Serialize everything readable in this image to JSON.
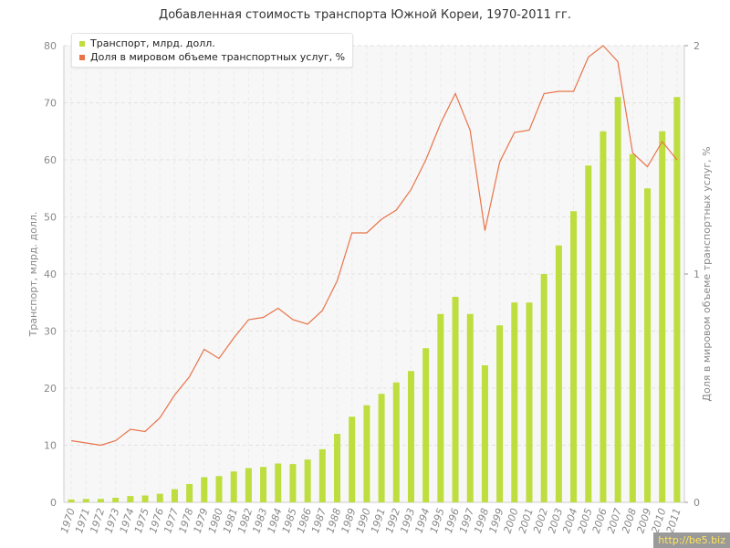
{
  "chart_data": {
    "type": "bar",
    "title": "Добавленная стоимость транспорта Южной Кореи, 1970-2011 гг.",
    "ylabel_left": "Транспорт, млрд. долл.",
    "ylabel_right": "Доля в мировом объеме транспортных услуг, %",
    "ylim_left": [
      0,
      80
    ],
    "yticks_left": [
      0,
      10,
      20,
      30,
      40,
      50,
      60,
      70,
      80
    ],
    "ylim_right": [
      0,
      2
    ],
    "yticks_right": [
      0,
      1,
      2
    ],
    "grid": true,
    "legend_position": "top-left",
    "categories": [
      "1970",
      "1971",
      "1972",
      "1973",
      "1974",
      "1975",
      "1976",
      "1977",
      "1978",
      "1979",
      "1980",
      "1981",
      "1982",
      "1983",
      "1984",
      "1985",
      "1986",
      "1987",
      "1988",
      "1989",
      "1990",
      "1991",
      "1992",
      "1993",
      "1994",
      "1995",
      "1996",
      "1997",
      "1998",
      "1999",
      "2000",
      "2001",
      "2002",
      "2003",
      "2004",
      "2005",
      "2006",
      "2007",
      "2008",
      "2009",
      "2010",
      "2011"
    ],
    "series": [
      {
        "name": "Транспорт, млрд. долл.",
        "type": "bar",
        "axis": "left",
        "color": "#bedd3e",
        "values": [
          0.5,
          0.6,
          0.6,
          0.8,
          1.1,
          1.2,
          1.5,
          2.3,
          3.2,
          4.4,
          4.6,
          5.4,
          6.0,
          6.2,
          6.8,
          6.7,
          7.5,
          9.3,
          12,
          15,
          17,
          19,
          21,
          23,
          27,
          33,
          36,
          33,
          24,
          31,
          35,
          35,
          40,
          45,
          51,
          59,
          65,
          71,
          61,
          55,
          65,
          71
        ]
      },
      {
        "name": "Доля в мировом объеме транспортных услуг, %",
        "type": "line",
        "axis": "right",
        "color": "#e8744a",
        "values": [
          0.27,
          0.26,
          0.25,
          0.27,
          0.32,
          0.31,
          0.37,
          0.47,
          0.55,
          0.67,
          0.63,
          0.72,
          0.8,
          0.81,
          0.85,
          0.8,
          0.78,
          0.84,
          0.97,
          1.18,
          1.18,
          1.24,
          1.28,
          1.37,
          1.5,
          1.66,
          1.79,
          1.63,
          1.19,
          1.49,
          1.62,
          1.63,
          1.79,
          1.8,
          1.8,
          1.95,
          2.0,
          1.93,
          1.53,
          1.47,
          1.58,
          1.5
        ]
      }
    ]
  },
  "watermark": "http://be5.biz"
}
